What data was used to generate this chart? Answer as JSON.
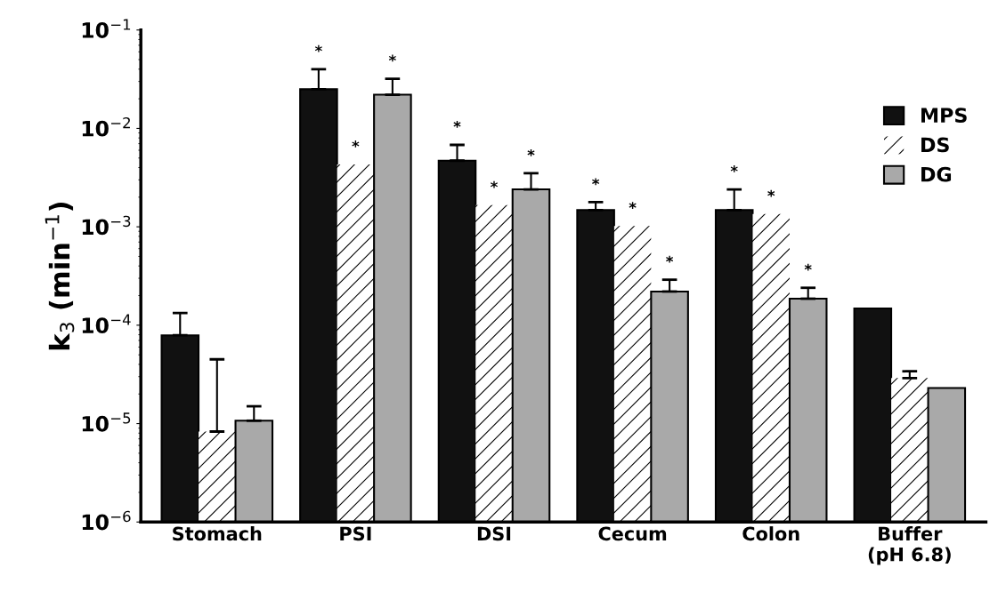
{
  "chart_data": {
    "type": "bar",
    "ylabel": "k$_{3}$ (min$^{−1}$)",
    "log": true,
    "grid": false,
    "legend": "top right",
    "categories": [
      "Stomach",
      "PSI",
      "DSI",
      "Cecum",
      "Colon",
      "Buffer\n(pH 6.8)"
    ],
    "ylim": [
      1e-06,
      0.1
    ],
    "yticks": [
      {
        "value": 1e-06,
        "label": "10$^{−6}$"
      },
      {
        "value": 1e-05,
        "label": "10$^{−5}$"
      },
      {
        "value": 0.0001,
        "label": "10$^{−4}$"
      },
      {
        "value": 0.001,
        "label": "10$^{−3}$"
      },
      {
        "value": 0.01,
        "label": "10$^{−2}$"
      },
      {
        "value": 0.1,
        "label": "10$^{−1}$"
      }
    ],
    "series": [
      {
        "name": "MPS",
        "color": "#111111",
        "values": [
          7.9e-05,
          0.025,
          0.0047,
          0.00148,
          0.00148,
          0.000148
        ],
        "errors": [
          [
            7.9e-05,
            0.000133
          ],
          [
            0.025,
            0.04
          ],
          [
            0.0047,
            0.0068
          ],
          [
            0.00148,
            0.00178
          ],
          [
            0.00148,
            0.0024
          ],
          null
        ],
        "value_labels": [
          null,
          "*",
          "*",
          "*",
          "*",
          null
        ]
      },
      {
        "name": "DS",
        "color": "#ffffff",
        "values": [
          8.3e-06,
          0.0043,
          0.00166,
          0.00102,
          0.00135,
          2.9e-05
        ],
        "errors": [
          [
            8.3e-06,
            4.5e-05
          ],
          null,
          null,
          null,
          null,
          [
            2.9e-05,
            3.4e-05
          ]
        ],
        "value_labels": [
          null,
          "*",
          "*",
          "*",
          "*",
          null
        ]
      },
      {
        "name": "DG",
        "color": "#a9a9a9",
        "values": [
          1.07e-05,
          0.022,
          0.0024,
          0.00022,
          0.000186,
          2.3e-05
        ],
        "errors": [
          [
            1.07e-05,
            1.5e-05
          ],
          [
            0.022,
            0.032
          ],
          [
            0.0024,
            0.0035
          ],
          [
            0.00022,
            0.00029
          ],
          [
            0.000186,
            0.00024
          ],
          null
        ],
        "value_labels": [
          null,
          "*",
          "*",
          "*",
          "*",
          null
        ]
      }
    ]
  }
}
